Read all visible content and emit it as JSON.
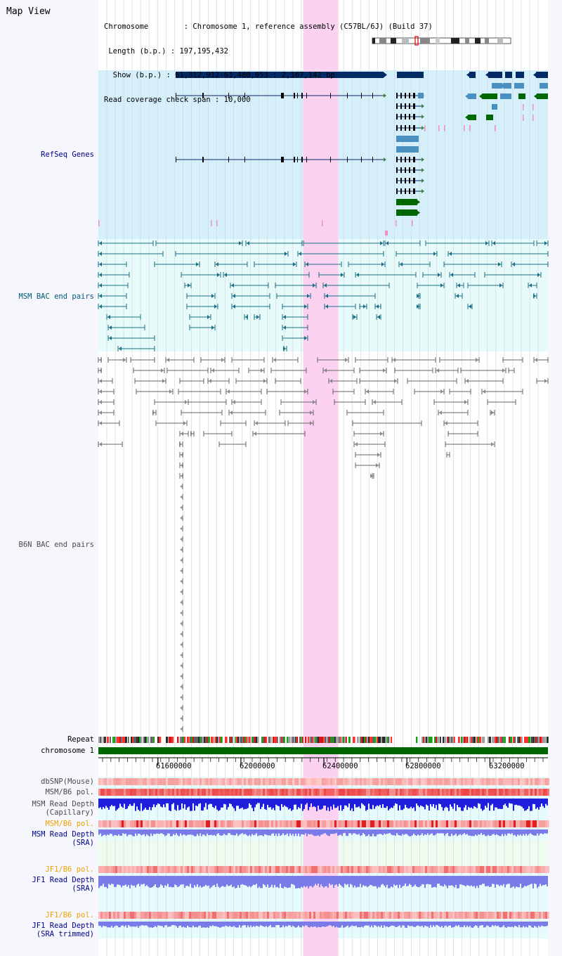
{
  "view_title": "Map View",
  "header": {
    "lines": [
      "Chromosome        : Chromosome 1, reference assembly (C57BL/6J) (Build 37)",
      " Length (b.p.) : 197,195,432",
      "  Show (b.p.) : 61,312,912-63,480,053 : 2,167,142 bp",
      "Read coverage check span : 10,000"
    ]
  },
  "tracks": {
    "refseq": "RefSeq Genes",
    "msm_bac": "MSM BAC end pairs",
    "b6n_bac": "B6N BAC end pairs",
    "repeat": "Repeat",
    "chromosome": "chromosome 1",
    "dbsnp": "dbSNP(Mouse)",
    "msm_b6_pol_1": "MSM/B6 pol.",
    "msm_depth_cap_1": "MSM Read Depth",
    "msm_depth_cap_2": "(Capillary)",
    "msm_b6_pol_2": "MSM/B6 pol.",
    "msm_depth_sra_1": "MSM Read Depth",
    "msm_depth_sra_2": "(SRA)",
    "jf1_b6_pol_1": "JF1/B6 pol.",
    "jf1_depth_sra_1": "JF1 Read Depth",
    "jf1_depth_sra_2": "(SRA)",
    "jf1_b6_pol_2": "JF1/B6 pol.",
    "jf1_depth_trim_1": "JF1 Read Depth",
    "jf1_depth_trim_2": "(SRA trimmed)"
  },
  "axis": {
    "start_bp": 61312912,
    "end_bp": 63480053,
    "tick_labels": [
      "61600000",
      "62000000",
      "62400000",
      "62800000",
      "63200000"
    ],
    "highlight_bp": [
      62300000,
      62470000
    ]
  },
  "colors": {
    "refseq_bg": "#d5f0fb",
    "bac_bg": "#e8fbfb",
    "highlight": "#fbd2ef",
    "gene_dark": "#002a66",
    "gene_mid": "#4a90c0",
    "gene_green": "#006600",
    "msm_bac": "#1a6f86",
    "b6n_bac": "#666666",
    "depth_blue": "#1e1edc",
    "depth_violet": "#7a7ae8"
  }
}
